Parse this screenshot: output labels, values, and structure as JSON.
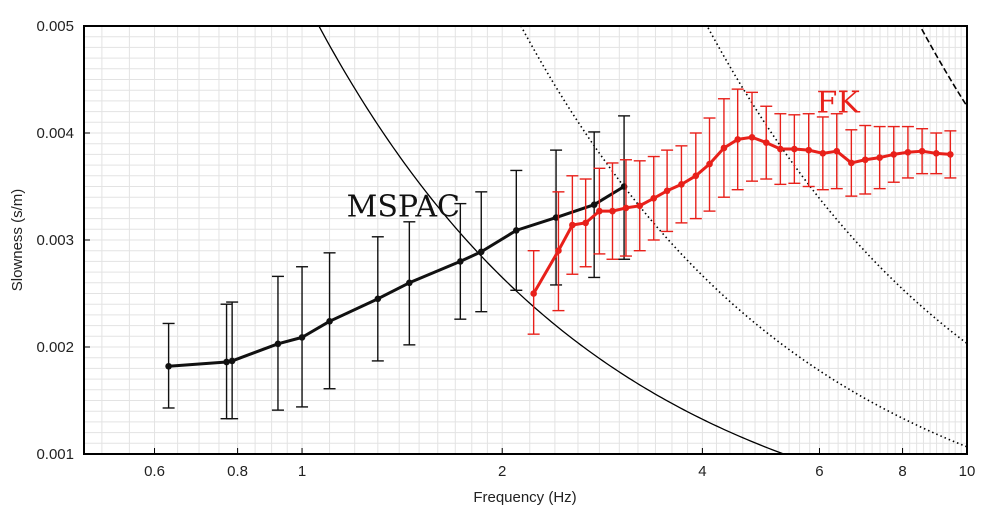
{
  "chart_data": {
    "type": "line",
    "xscale": "log",
    "xlabel": "Frequency (Hz)",
    "ylabel": "Slowness (s/m)",
    "xlim": [
      0.47,
      10
    ],
    "ylim": [
      0.001,
      0.005
    ],
    "x_ticks": [
      0.6,
      0.8,
      1,
      2,
      4,
      6,
      8,
      10
    ],
    "x_tick_labels": [
      "0.6",
      "0.8",
      "1",
      "2",
      "4",
      "6",
      "8",
      "10"
    ],
    "y_ticks": [
      0.001,
      0.002,
      0.003,
      0.004,
      0.005
    ],
    "y_tick_labels": [
      "0.001",
      "0.002",
      "0.003",
      "0.004",
      "0.005"
    ],
    "grid": true,
    "colors": {
      "mspac": "#111111",
      "fk": "#e8201a",
      "grid": "#e3e3e3"
    },
    "series": [
      {
        "name": "MSPAC",
        "color": "#111111",
        "x": [
          0.63,
          0.77,
          0.785,
          0.92,
          1.0,
          1.1,
          1.3,
          1.45,
          1.73,
          1.86,
          2.1,
          2.41,
          2.75,
          3.05
        ],
        "y": [
          0.00182,
          0.00186,
          0.00187,
          0.00203,
          0.00209,
          0.00224,
          0.00245,
          0.0026,
          0.0028,
          0.00289,
          0.00309,
          0.00321,
          0.00333,
          0.0035
        ],
        "err_low": [
          0.00143,
          0.00133,
          0.00133,
          0.00141,
          0.00144,
          0.00161,
          0.00187,
          0.00202,
          0.00226,
          0.00233,
          0.00253,
          0.00258,
          0.00265,
          0.00282
        ],
        "err_high": [
          0.00222,
          0.0024,
          0.00242,
          0.00266,
          0.00275,
          0.00288,
          0.00303,
          0.00317,
          0.00334,
          0.00345,
          0.00365,
          0.00384,
          0.00401,
          0.00416
        ]
      },
      {
        "name": "FK",
        "color": "#e8201a",
        "x": [
          2.23,
          2.43,
          2.55,
          2.67,
          2.8,
          2.93,
          3.07,
          3.22,
          3.38,
          3.54,
          3.72,
          3.91,
          4.1,
          4.31,
          4.52,
          4.75,
          4.99,
          5.24,
          5.5,
          5.78,
          6.07,
          6.37,
          6.7,
          7.03,
          7.39,
          7.76,
          8.15,
          8.56,
          8.99,
          9.44
        ],
        "y": [
          0.0025,
          0.0029,
          0.00314,
          0.00316,
          0.00327,
          0.00327,
          0.0033,
          0.00332,
          0.00339,
          0.00346,
          0.00352,
          0.0036,
          0.00371,
          0.00386,
          0.00394,
          0.00396,
          0.00391,
          0.00385,
          0.00385,
          0.00384,
          0.00381,
          0.00383,
          0.00372,
          0.00375,
          0.00377,
          0.0038,
          0.00382,
          0.00383,
          0.00381,
          0.0038
        ],
        "err_low": [
          0.00212,
          0.00234,
          0.00268,
          0.00275,
          0.00287,
          0.00282,
          0.00285,
          0.0029,
          0.003,
          0.00308,
          0.00316,
          0.0032,
          0.00327,
          0.0034,
          0.00347,
          0.00355,
          0.00357,
          0.00352,
          0.00353,
          0.0035,
          0.00347,
          0.00348,
          0.00341,
          0.00343,
          0.00348,
          0.00354,
          0.00358,
          0.00362,
          0.00362,
          0.00358
        ],
        "err_high": [
          0.0029,
          0.00345,
          0.0036,
          0.00357,
          0.00367,
          0.00372,
          0.00375,
          0.00374,
          0.00378,
          0.00384,
          0.00388,
          0.004,
          0.00414,
          0.00432,
          0.00441,
          0.00438,
          0.00425,
          0.00418,
          0.00417,
          0.00418,
          0.00415,
          0.00418,
          0.00403,
          0.00407,
          0.00406,
          0.00406,
          0.00406,
          0.00404,
          0.004,
          0.00402
        ]
      }
    ],
    "curves": [
      {
        "style": "solid",
        "constant": 0.0053
      },
      {
        "style": "dotted",
        "constant": 0.01067
      },
      {
        "style": "dotted",
        "constant": 0.02033
      },
      {
        "style": "dashed",
        "constant": 0.0425
      }
    ],
    "annotations": [
      {
        "text": "MSPAC",
        "color": "#111111",
        "x": 1.42,
        "y": 0.00322
      },
      {
        "text": "FK",
        "color": "#e8201a",
        "x": 6.4,
        "y": 0.00419
      }
    ]
  }
}
